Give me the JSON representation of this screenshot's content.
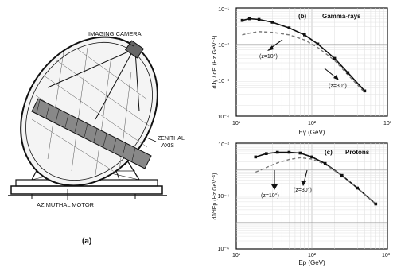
{
  "telescope": {
    "label_imaging_camera": "IMAGING CAMERA",
    "label_zenithal_axis_line1": "ZENITHAL",
    "label_zenithal_axis_line2": "AXIS",
    "label_azimuthal_motor": "AZIMUTHAL MOTOR",
    "panel_label": "(a)"
  },
  "chart_data": [
    {
      "type": "line",
      "panel": "(b)",
      "title": "Gamma-rays",
      "xlabel": "Eγ (GeV)",
      "ylabel": "dJγ / dE   (Hz GeV⁻¹)",
      "x_scale": "log",
      "y_scale": "log",
      "xlim": [
        10,
        1000
      ],
      "ylim": [
        0.0001,
        0.1
      ],
      "x_ticks": [
        "10¹",
        "10²",
        "10³"
      ],
      "y_ticks": [
        "10⁻¹",
        "10⁻²",
        "10⁻³",
        "10⁻⁴"
      ],
      "grid": true,
      "series": [
        {
          "style": "solid-markers",
          "x": [
            12,
            15,
            20,
            30,
            50,
            80,
            120,
            200,
            300,
            500
          ],
          "y": [
            0.045,
            0.05,
            0.048,
            0.04,
            0.028,
            0.018,
            0.01,
            0.004,
            0.0016,
            0.0005
          ]
        },
        {
          "style": "dashed",
          "x": [
            12,
            15,
            20,
            30,
            50,
            80,
            120,
            200,
            300,
            500
          ],
          "y": [
            0.018,
            0.02,
            0.022,
            0.021,
            0.018,
            0.013,
            0.008,
            0.0035,
            0.0014,
            0.00045
          ]
        }
      ],
      "annotations": [
        {
          "text": "(z=10°)"
        },
        {
          "text": "(z=30°)"
        }
      ]
    },
    {
      "type": "line",
      "panel": "(c)",
      "title": "Protons",
      "xlabel": "Ep (GeV)",
      "ylabel": "dJ/dEp (Hz GeV⁻¹)",
      "x_scale": "log",
      "y_scale": "log",
      "xlim": [
        10,
        1000
      ],
      "ylim": [
        1e-06,
        0.01
      ],
      "x_ticks": [
        "10¹",
        "10²",
        "10³"
      ],
      "y_ticks": [
        "10⁻²",
        "10⁻⁴",
        "10⁻⁶"
      ],
      "grid": true,
      "series": [
        {
          "style": "solid-markers",
          "x": [
            18,
            25,
            35,
            50,
            70,
            100,
            150,
            250,
            400,
            700
          ],
          "y": [
            0.003,
            0.004,
            0.0045,
            0.0045,
            0.0042,
            0.003,
            0.0017,
            0.0006,
            0.0002,
            5e-05
          ]
        },
        {
          "style": "dashed",
          "x": [
            18,
            25,
            35,
            50,
            70,
            100,
            150,
            250,
            400,
            700
          ],
          "y": [
            0.0008,
            0.0012,
            0.0018,
            0.0024,
            0.0028,
            0.0025,
            0.0016,
            0.00058,
            0.0002,
            5e-05
          ]
        }
      ],
      "annotations": [
        {
          "text": "(z=10°)"
        },
        {
          "text": "(z=30°)"
        }
      ]
    }
  ]
}
